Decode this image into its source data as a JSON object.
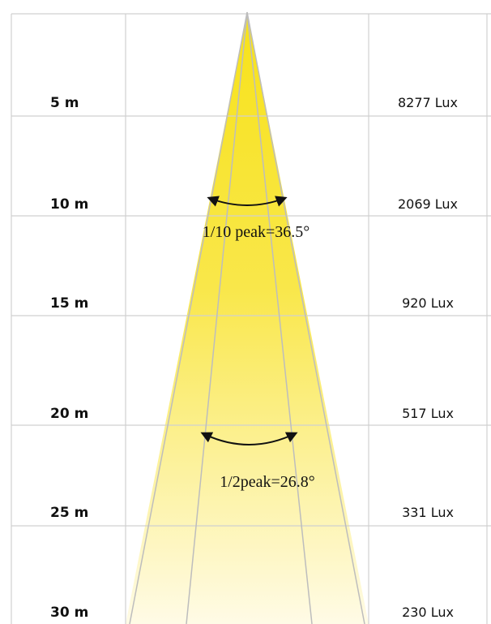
{
  "rows": [
    {
      "distance": "5 m",
      "illuminance": "8277 Lux"
    },
    {
      "distance": "10 m",
      "illuminance": "2069 Lux"
    },
    {
      "distance": "15 m",
      "illuminance": "920 Lux"
    },
    {
      "distance": "20 m",
      "illuminance": "517 Lux"
    },
    {
      "distance": "25 m",
      "illuminance": "331 Lux"
    },
    {
      "distance": "30 m",
      "illuminance": "230 Lux"
    }
  ],
  "annotations": [
    {
      "label": "1/10 peak=36.5°"
    },
    {
      "label": "1/2peak=26.8°"
    }
  ]
}
